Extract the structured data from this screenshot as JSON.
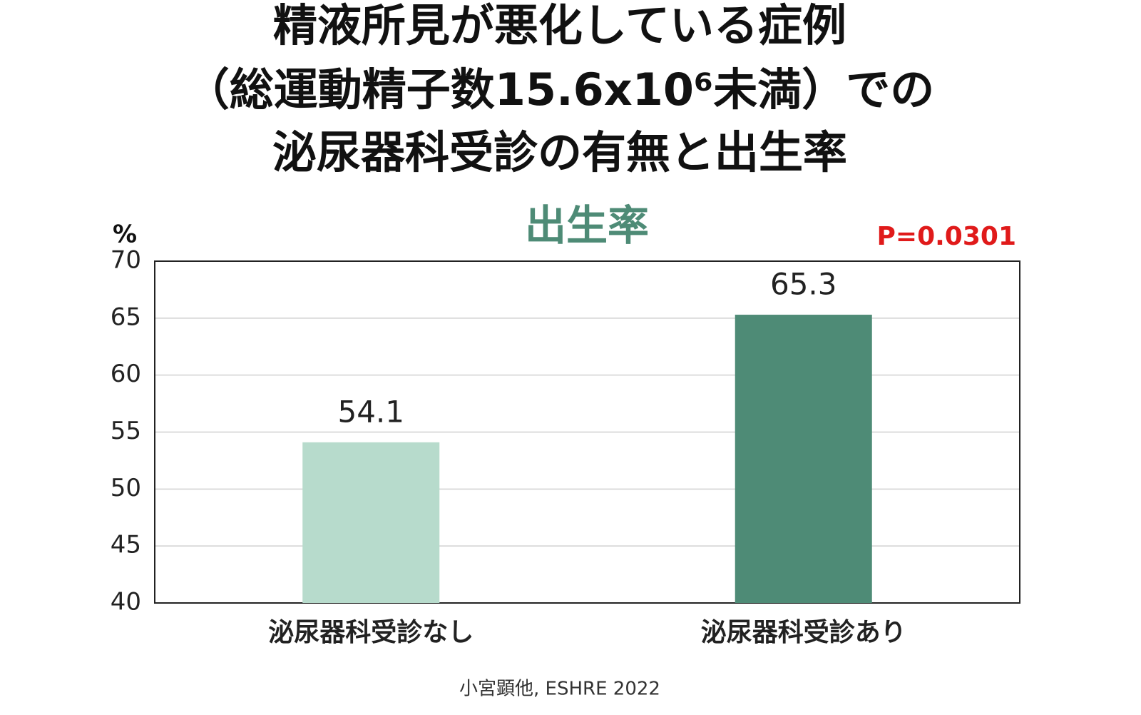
{
  "chart_data": {
    "type": "bar",
    "title": [
      "精液所見が悪化している症例",
      "（総運動精子数15.6x10⁶未満）での",
      "泌尿器科受診の有無と出生率"
    ],
    "subtitle": "出生率",
    "y_label": "%",
    "annotation": "P=0.0301",
    "source": "小宮顕他, ESHRE 2022",
    "categories": [
      "泌尿器科受診なし",
      "泌尿器科受診あり"
    ],
    "values": [
      54.1,
      65.3
    ],
    "colors": [
      "#b7dbcc",
      "#4e8b76"
    ],
    "ylim": [
      40,
      70
    ],
    "yticks": [
      40,
      45,
      50,
      55,
      60,
      65,
      70
    ],
    "grid": true
  }
}
